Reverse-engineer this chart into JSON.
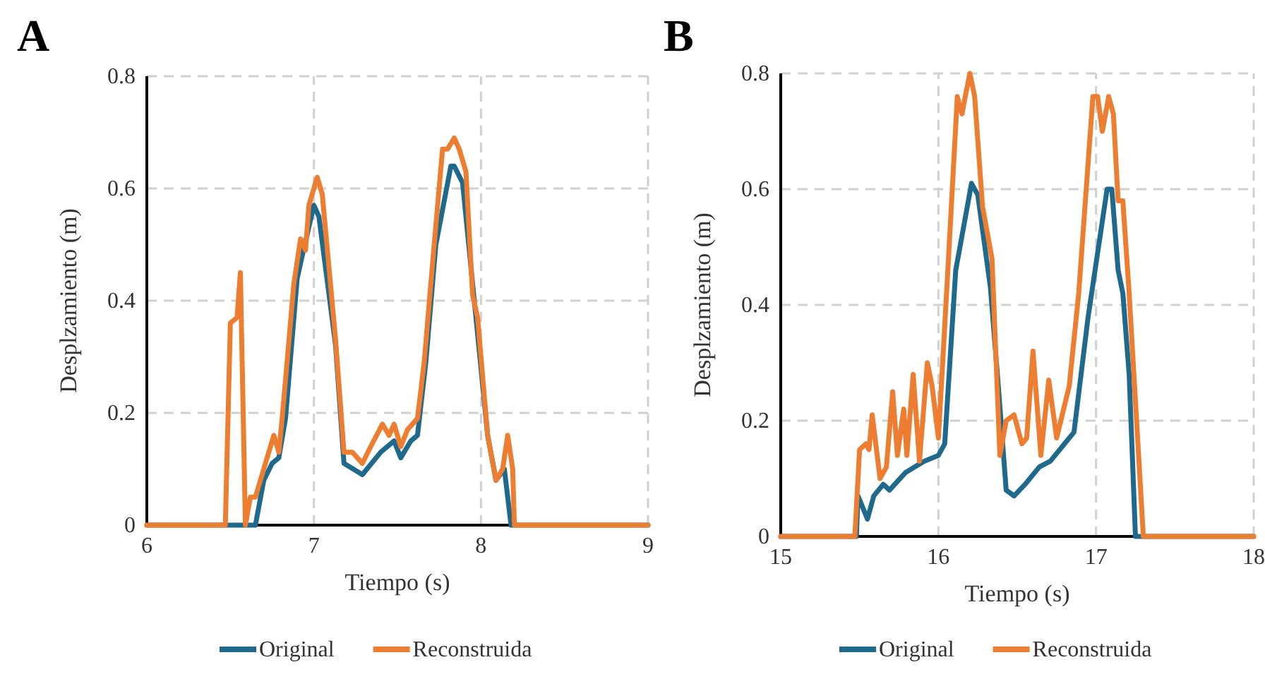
{
  "chart_data": [
    {
      "type": "line",
      "title": "A",
      "xlabel": "Tiempo (s)",
      "ylabel": "Desplzamiento (m)",
      "xlim": [
        6,
        9
      ],
      "xticks": [
        6,
        7,
        8,
        9
      ],
      "ylim": [
        0,
        0.8
      ],
      "yticks": [
        0,
        0.2,
        0.4,
        0.6,
        0.8
      ],
      "grid": true,
      "legend": "bottom",
      "line_style": "solid",
      "marker": "none",
      "series": [
        {
          "name": "Original",
          "color": "#1f6a8c",
          "x": [
            6,
            6.65,
            6.7,
            6.75,
            6.79,
            6.83,
            6.9,
            6.93,
            7.0,
            7.03,
            7.13,
            7.18,
            7.29,
            7.4,
            7.48,
            7.52,
            7.58,
            7.62,
            7.67,
            7.73,
            7.82,
            7.84,
            7.89,
            7.96,
            8.04,
            8.09,
            8.14,
            8.18,
            9
          ],
          "values": [
            0,
            0,
            0.08,
            0.11,
            0.12,
            0.19,
            0.44,
            0.48,
            0.57,
            0.55,
            0.32,
            0.11,
            0.09,
            0.13,
            0.15,
            0.12,
            0.15,
            0.16,
            0.29,
            0.5,
            0.64,
            0.64,
            0.61,
            0.4,
            0.16,
            0.08,
            0.1,
            0,
            0
          ]
        },
        {
          "name": "Reconstruida",
          "color": "#ed7d31",
          "x": [
            6,
            6.47,
            6.5,
            6.54,
            6.56,
            6.59,
            6.62,
            6.65,
            6.71,
            6.76,
            6.79,
            6.81,
            6.88,
            6.92,
            6.95,
            6.97,
            7.02,
            7.05,
            7.13,
            7.18,
            7.23,
            7.29,
            7.34,
            7.41,
            7.45,
            7.48,
            7.52,
            7.56,
            7.62,
            7.66,
            7.72,
            7.77,
            7.8,
            7.84,
            7.87,
            7.91,
            7.95,
            7.98,
            8.04,
            8.09,
            8.13,
            8.16,
            8.19,
            8.2,
            9
          ],
          "values": [
            0,
            0,
            0.36,
            0.37,
            0.45,
            0,
            0.05,
            0.05,
            0.11,
            0.16,
            0.13,
            0.19,
            0.43,
            0.51,
            0.49,
            0.57,
            0.62,
            0.59,
            0.33,
            0.13,
            0.13,
            0.11,
            0.14,
            0.18,
            0.16,
            0.18,
            0.14,
            0.17,
            0.19,
            0.29,
            0.5,
            0.67,
            0.67,
            0.69,
            0.67,
            0.63,
            0.41,
            0.37,
            0.16,
            0.08,
            0.1,
            0.16,
            0.1,
            0,
            0
          ]
        }
      ]
    },
    {
      "type": "line",
      "title": "B",
      "xlabel": "Tiempo (s)",
      "ylabel": "Desplzamiento (m)",
      "xlim": [
        15,
        18
      ],
      "xticks": [
        15,
        16,
        17,
        18
      ],
      "ylim": [
        0,
        0.8
      ],
      "yticks": [
        0,
        0.2,
        0.4,
        0.6,
        0.8
      ],
      "grid": true,
      "legend": "bottom",
      "line_style": "solid",
      "marker": "none",
      "series": [
        {
          "name": "Original",
          "color": "#1f6a8c",
          "x": [
            15,
            15.48,
            15.49,
            15.55,
            15.59,
            15.65,
            15.69,
            15.79,
            15.85,
            15.91,
            16.0,
            16.04,
            16.11,
            16.21,
            16.25,
            16.33,
            16.38,
            16.43,
            16.48,
            16.55,
            16.64,
            16.71,
            16.8,
            16.86,
            16.95,
            17.07,
            17.1,
            17.14,
            17.17,
            17.21,
            17.25,
            18
          ],
          "values": [
            0,
            0,
            0.07,
            0.03,
            0.07,
            0.09,
            0.08,
            0.11,
            0.12,
            0.13,
            0.14,
            0.16,
            0.46,
            0.61,
            0.59,
            0.43,
            0.26,
            0.08,
            0.07,
            0.09,
            0.12,
            0.13,
            0.16,
            0.18,
            0.38,
            0.6,
            0.6,
            0.46,
            0.42,
            0.28,
            0,
            0
          ]
        },
        {
          "name": "Reconstruida",
          "color": "#ed7d31",
          "x": [
            15,
            15.47,
            15.5,
            15.54,
            15.56,
            15.58,
            15.63,
            15.67,
            15.71,
            15.74,
            15.78,
            15.8,
            15.84,
            15.88,
            15.93,
            15.96,
            16.0,
            16.06,
            16.12,
            16.15,
            16.17,
            16.2,
            16.23,
            16.28,
            16.34,
            16.39,
            16.43,
            16.48,
            16.53,
            16.56,
            16.6,
            16.65,
            16.7,
            16.75,
            16.83,
            16.89,
            16.98,
            17.01,
            17.04,
            17.08,
            17.11,
            17.14,
            17.17,
            17.21,
            17.3,
            18
          ],
          "values": [
            0,
            0,
            0.15,
            0.16,
            0.15,
            0.21,
            0.1,
            0.12,
            0.25,
            0.14,
            0.22,
            0.14,
            0.28,
            0.13,
            0.3,
            0.26,
            0.17,
            0.46,
            0.76,
            0.73,
            0.76,
            0.8,
            0.76,
            0.57,
            0.48,
            0.14,
            0.2,
            0.21,
            0.16,
            0.17,
            0.32,
            0.14,
            0.27,
            0.17,
            0.26,
            0.42,
            0.76,
            0.76,
            0.7,
            0.76,
            0.73,
            0.58,
            0.58,
            0.42,
            0,
            0
          ]
        }
      ]
    }
  ]
}
